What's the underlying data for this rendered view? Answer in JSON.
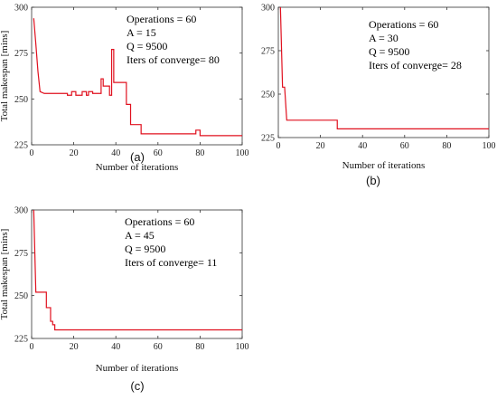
{
  "colors": {
    "line": "#e0101e",
    "axis": "#333333",
    "background": "#ffffff"
  },
  "chart_data": [
    {
      "panel": "a",
      "caption": "(a)",
      "type": "line",
      "xlabel": "Number of iterations",
      "ylabel": "Total makespan [mins]",
      "xlim": [
        0,
        100
      ],
      "ylim": [
        225,
        300
      ],
      "xticks": [
        "0",
        "20",
        "40",
        "60",
        "80",
        "100"
      ],
      "yticks": [
        "225",
        "250",
        "275",
        "300"
      ],
      "annotations": [
        "Operations = 60",
        "A = 15",
        "Q = 9500",
        "Iters of converge= 80"
      ],
      "series": [
        {
          "x": [
            1,
            1,
            2,
            3,
            4,
            4,
            6,
            6,
            17,
            17,
            19,
            19,
            21,
            21,
            24,
            24,
            26,
            26,
            27,
            27,
            29,
            29,
            33,
            33,
            34,
            34,
            37,
            37,
            38,
            38,
            39,
            39,
            45,
            45,
            47,
            47,
            52,
            52,
            78,
            78,
            80,
            80,
            100
          ],
          "y": [
            294,
            294,
            280,
            265,
            254,
            254,
            253,
            253,
            253,
            252,
            252,
            254,
            254,
            252,
            252,
            254,
            254,
            252,
            252,
            254,
            254,
            253,
            253,
            261,
            261,
            257,
            257,
            252,
            252,
            277,
            277,
            259,
            259,
            247,
            247,
            236,
            236,
            231,
            231,
            233,
            233,
            230,
            230
          ]
        }
      ]
    },
    {
      "panel": "b",
      "caption": "(b)",
      "type": "line",
      "xlabel": "Number of iterations",
      "ylabel": "",
      "xlim": [
        0,
        100
      ],
      "ylim": [
        225,
        300
      ],
      "xticks": [
        "0",
        "20",
        "40",
        "60",
        "80",
        "100"
      ],
      "yticks": [
        "225",
        "250",
        "275",
        "300"
      ],
      "annotations": [
        "Operations = 60",
        "A = 30",
        "Q = 9500",
        "Iters of converge= 28"
      ],
      "series": [
        {
          "x": [
            1,
            1,
            2,
            2,
            3,
            3,
            4,
            4,
            28,
            28,
            100
          ],
          "y": [
            300,
            300,
            254,
            254,
            254,
            254,
            235,
            235,
            235,
            230,
            230
          ]
        }
      ]
    },
    {
      "panel": "c",
      "caption": "(c)",
      "type": "line",
      "xlabel": "Number of iterations",
      "ylabel": "Total makespan [mins]",
      "xlim": [
        0,
        100
      ],
      "ylim": [
        225,
        300
      ],
      "xticks": [
        "0",
        "20",
        "40",
        "60",
        "80",
        "100"
      ],
      "yticks": [
        "225",
        "250",
        "275",
        "300"
      ],
      "annotations": [
        "Operations = 60",
        "A = 45",
        "Q = 9500",
        "Iters of converge= 11"
      ],
      "series": [
        {
          "x": [
            1,
            1,
            2,
            2,
            7,
            7,
            9,
            9,
            10,
            10,
            11,
            11,
            100
          ],
          "y": [
            300,
            300,
            252,
            252,
            252,
            243,
            243,
            235,
            235,
            233,
            233,
            230,
            230
          ]
        }
      ]
    }
  ]
}
